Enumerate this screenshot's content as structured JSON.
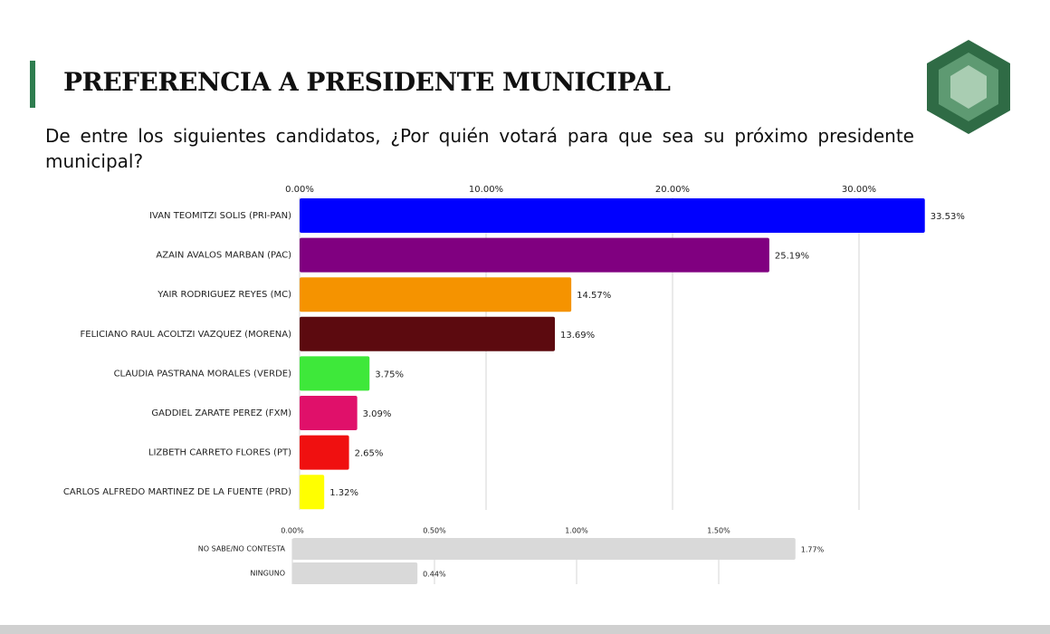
{
  "chart_data": [
    {
      "type": "bar",
      "orientation": "horizontal",
      "title": "PREFERENCIA A PRESIDENTE MUNICIPAL",
      "subtitle": "De entre los siguientes candidatos, ¿Por quién votará para que sea su próximo presidente municipal?",
      "categories": [
        "IVAN TEOMITZI SOLIS (PRI-PAN)",
        "AZAIN AVALOS MARBAN (PAC)",
        "YAIR RODRIGUEZ REYES (MC)",
        "FELICIANO RAUL ACOLTZI VAZQUEZ (MORENA)",
        "CLAUDIA PASTRANA MORALES (VERDE)",
        "GADDIEL ZARATE PEREZ (FXM)",
        "LIZBETH CARRETO FLORES (PT)",
        "CARLOS ALFREDO MARTINEZ DE LA FUENTE (PRD)"
      ],
      "values": [
        33.53,
        25.19,
        14.57,
        13.69,
        3.75,
        3.09,
        2.65,
        1.32
      ],
      "value_labels": [
        "33.53%",
        "25.19%",
        "14.57%",
        "13.69%",
        "3.75%",
        "3.09%",
        "2.65%",
        "1.32%"
      ],
      "colors": [
        "#0000ff",
        "#800080",
        "#f59300",
        "#5c0a0f",
        "#3ee83a",
        "#e0106a",
        "#f01010",
        "#ffff00"
      ],
      "xlim": [
        0,
        35
      ],
      "xticks": [
        {
          "value": 0,
          "label": "0.00%"
        },
        {
          "value": 10,
          "label": "10.00%"
        },
        {
          "value": 20,
          "label": "20.00%"
        },
        {
          "value": 30,
          "label": "30.00%"
        }
      ],
      "grid": true
    },
    {
      "type": "bar",
      "orientation": "horizontal",
      "categories": [
        "NO SABE/NO CONTESTA",
        "NINGUNO"
      ],
      "values": [
        1.77,
        0.44
      ],
      "value_labels": [
        "1.77%",
        "0.44%"
      ],
      "colors": [
        "#d9d9d9",
        "#d9d9d9"
      ],
      "xlim": [
        0,
        2
      ],
      "xticks": [
        {
          "value": 0,
          "label": "0.00%"
        },
        {
          "value": 0.5,
          "label": "0.50%"
        },
        {
          "value": 1,
          "label": "1.00%"
        },
        {
          "value": 1.5,
          "label": "1.50%"
        }
      ],
      "grid": true
    }
  ]
}
